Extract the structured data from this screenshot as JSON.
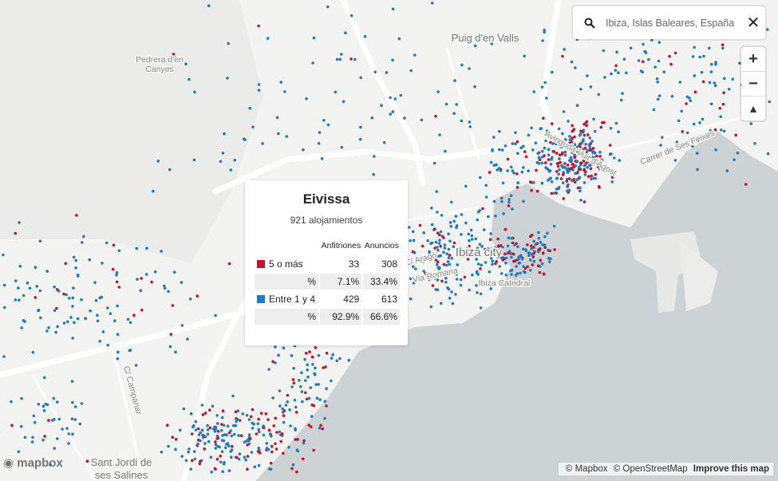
{
  "search": {
    "query": "Ibiza, Islas Baleares, España"
  },
  "map_labels": {
    "puig": "Puig d'en Valls",
    "pedrera": [
      "Pedrera d'en",
      "Canyes"
    ],
    "ibiza_city": "Ibiza city",
    "catedral": "Ibiza Catedral",
    "via_romana": "Via Romana",
    "arago": "C/ Aragó",
    "avinguda": "Avinguda Vuit d'Agost",
    "feixes": "Carrer de Ses Feixes",
    "campanar": "C/ Campanar",
    "sant_jordi": [
      "Sant Jordi de",
      "ses Salines"
    ]
  },
  "popup": {
    "title": "Eivissa",
    "subtitle": "921 alojamientos",
    "columns": [
      "Anfitriones",
      "Anuncios"
    ],
    "rows": [
      {
        "label": "5 o más",
        "color": "#c8102e",
        "values": [
          33,
          308
        ]
      },
      {
        "label": "%",
        "values": [
          "7.1%",
          "33.4%"
        ]
      },
      {
        "label": "Entre 1 y 4",
        "color": "#1f7bbf",
        "values": [
          429,
          613
        ]
      },
      {
        "label": "%",
        "values": [
          "92.9%",
          "66.6%"
        ]
      }
    ]
  },
  "attribution": {
    "logo": "mapbox",
    "links": [
      "© Mapbox",
      "© OpenStreetMap",
      "Improve this map"
    ]
  }
}
